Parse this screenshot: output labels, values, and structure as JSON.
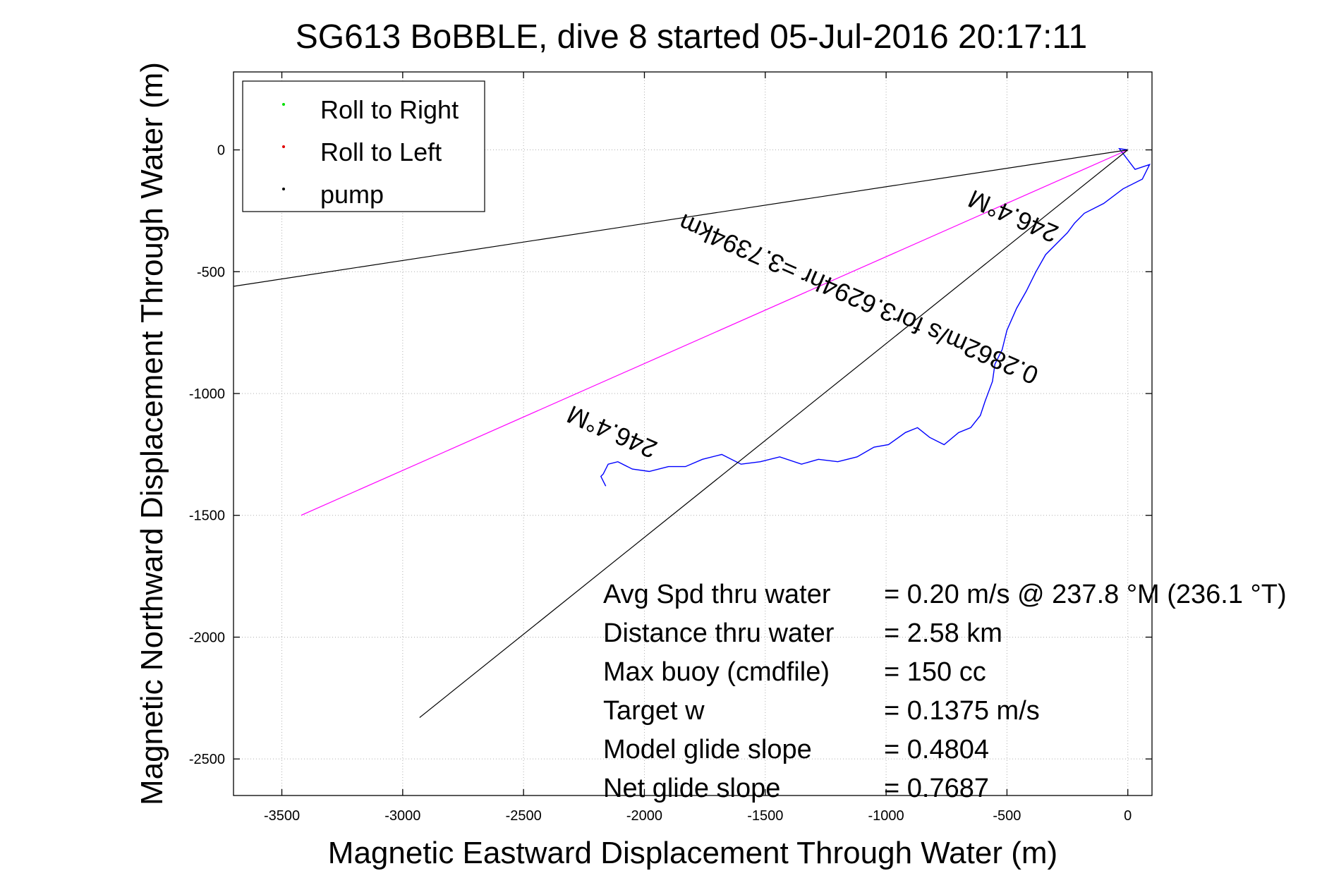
{
  "chart_data": {
    "type": "line",
    "title": "SG613 BoBBLE, dive 8 started 05-Jul-2016 20:17:11",
    "xlabel": "Magnetic Eastward Displacement Through Water (m)",
    "ylabel": "Magnetic Northward Displacement Through Water (m)",
    "xlim": [
      -3700,
      100
    ],
    "ylim": [
      -2650,
      320
    ],
    "xticks": [
      -3500,
      -3000,
      -2500,
      -2000,
      -1500,
      -1000,
      -500,
      0
    ],
    "yticks": [
      0,
      -500,
      -1000,
      -1500,
      -2000,
      -2500
    ],
    "grid": true,
    "legend_position": "top-left",
    "legend": [
      {
        "label": "Roll to Right",
        "color": "#00e000"
      },
      {
        "label": "Roll to Left",
        "color": "#e00000"
      },
      {
        "label": "pump",
        "color": "#000000"
      }
    ],
    "series": [
      {
        "color": "#0000ff",
        "x": [
          0,
          -35,
          30,
          90,
          60,
          -20,
          -100,
          -180,
          -220,
          -250,
          -290,
          -340,
          -380,
          -420,
          -460,
          -500,
          -520,
          -550,
          -560,
          -590,
          -610,
          -650,
          -700,
          -760,
          -820,
          -870,
          -920,
          -990,
          -1050,
          -1120,
          -1200,
          -1280,
          -1350,
          -1440,
          -1520,
          -1600,
          -1680,
          -1760,
          -1830,
          -1900,
          -1980,
          -2050,
          -2110,
          -2150,
          -2170,
          -2180,
          -2170,
          -2160
        ],
        "y": [
          0,
          5,
          -80,
          -60,
          -120,
          -160,
          -220,
          -260,
          -300,
          -340,
          -380,
          -430,
          -500,
          -580,
          -650,
          -740,
          -820,
          -880,
          -950,
          -1030,
          -1090,
          -1140,
          -1160,
          -1210,
          -1180,
          -1140,
          -1160,
          -1210,
          -1220,
          -1260,
          -1280,
          -1270,
          -1290,
          -1260,
          -1280,
          -1290,
          -1250,
          -1270,
          -1300,
          -1300,
          -1320,
          -1310,
          -1280,
          -1290,
          -1330,
          -1340,
          -1360,
          -1380
        ]
      },
      {
        "color": "#ff00ff",
        "x": [
          0,
          -3420
        ],
        "y": [
          0,
          -1500
        ]
      },
      {
        "color": "#000000",
        "x": [
          0,
          -3700
        ],
        "y": [
          0,
          -560
        ]
      },
      {
        "color": "#000000",
        "x": [
          0,
          -2930
        ],
        "y": [
          0,
          -2330
        ]
      }
    ],
    "annotations": [
      {
        "text": "246.4°M",
        "x": -2120,
        "y": -1125,
        "rotation": 203.6
      },
      {
        "text": "0.2862m/s for3.6294hr =3.7394km",
        "x": -1100,
        "y": -580,
        "rotation": 203.6
      },
      {
        "text": "246.4°M",
        "x": -460,
        "y": -240,
        "rotation": 203.6
      }
    ],
    "stats": [
      {
        "label": "Avg Spd thru water",
        "value": "=  0.20 m/s @ 237.8 °M (236.1 °T)"
      },
      {
        "label": "Distance thru water",
        "value": "=  2.58 km"
      },
      {
        "label": "Max buoy (cmdfile)",
        "value": "= 150 cc"
      },
      {
        "label": "Target w",
        "value": "= 0.1375 m/s"
      },
      {
        "label": "Model glide slope",
        "value": "= 0.4804"
      },
      {
        "label": "Net glide slope",
        "value": "= 0.7687"
      }
    ]
  }
}
